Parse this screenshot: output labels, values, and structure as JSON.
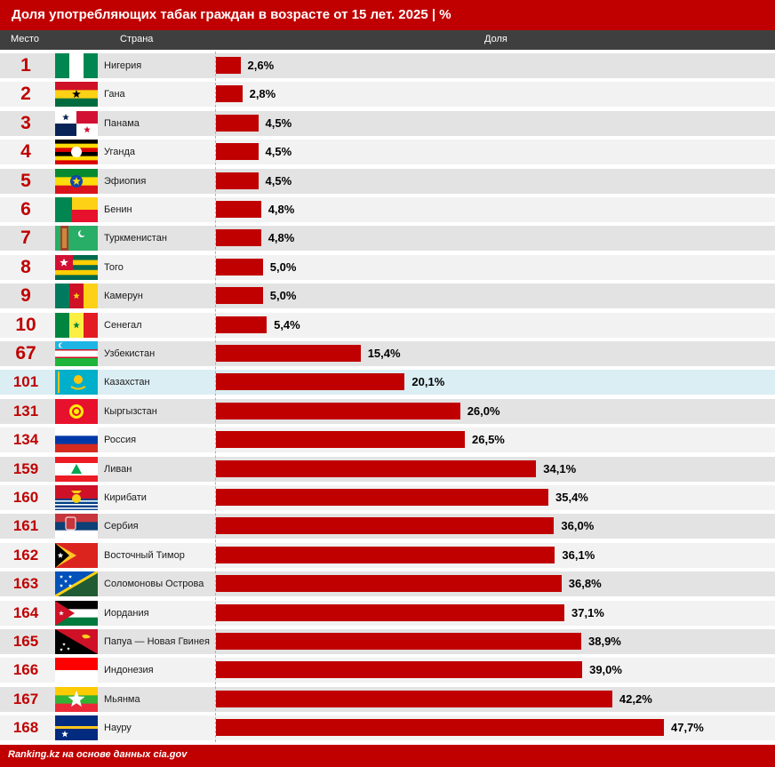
{
  "header": {
    "title": "Доля употребляющих табак граждан в возрасте от 15 лет. 2025 | %",
    "col_rank": "Место",
    "col_country": "Страна",
    "col_share": "Доля"
  },
  "footer": {
    "source": "Ranking.kz на основе данных cia.gov"
  },
  "colors": {
    "accent": "#c00000",
    "header_dark": "#3f3f3f",
    "highlight": "#dbeef4"
  },
  "chart_data": {
    "type": "bar",
    "orientation": "horizontal",
    "title": "Доля употребляющих табак граждан в возрасте от 15 лет. 2025 | %",
    "xlabel": "Доля",
    "unit": "%",
    "xlim": [
      0,
      47.7
    ],
    "categories": [
      "Нигерия",
      "Гана",
      "Панама",
      "Уганда",
      "Эфиопия",
      "Бенин",
      "Туркменистан",
      "Того",
      "Камерун",
      "Сенегал",
      "Узбекистан",
      "Казахстан",
      "Кыргызстан",
      "Россия",
      "Ливан",
      "Кирибати",
      "Сербия",
      "Восточный Тимор",
      "Соломоновы Острова",
      "Иордания",
      "Папуа — Новая Гвинея",
      "Индонезия",
      "Мьянма",
      "Науру"
    ],
    "ranks": [
      "1",
      "2",
      "3",
      "4",
      "5",
      "6",
      "7",
      "8",
      "9",
      "10",
      "67",
      "101",
      "131",
      "134",
      "159",
      "160",
      "161",
      "162",
      "163",
      "164",
      "165",
      "166",
      "167",
      "168"
    ],
    "values": [
      2.6,
      2.8,
      4.5,
      4.5,
      4.5,
      4.8,
      4.8,
      5.0,
      5.0,
      5.4,
      15.4,
      20.1,
      26.0,
      26.5,
      34.1,
      35.4,
      36.0,
      36.1,
      36.8,
      37.1,
      38.9,
      39.0,
      42.2,
      47.7
    ],
    "labels": [
      "2,6%",
      "2,8%",
      "4,5%",
      "4,5%",
      "4,5%",
      "4,8%",
      "4,8%",
      "5,0%",
      "5,0%",
      "5,4%",
      "15,4%",
      "20,1%",
      "26,0%",
      "26,5%",
      "34,1%",
      "35,4%",
      "36,0%",
      "36,1%",
      "36,8%",
      "37,1%",
      "38,9%",
      "39,0%",
      "42,2%",
      "47,7%"
    ],
    "flags": [
      "nigeria-flag-icon",
      "ghana-flag-icon",
      "panama-flag-icon",
      "uganda-flag-icon",
      "ethiopia-flag-icon",
      "benin-flag-icon",
      "turkmenistan-flag-icon",
      "togo-flag-icon",
      "cameroon-flag-icon",
      "senegal-flag-icon",
      "uzbekistan-flag-icon",
      "kazakhstan-flag-icon",
      "kyrgyzstan-flag-icon",
      "russia-flag-icon",
      "lebanon-flag-icon",
      "kiribati-flag-icon",
      "serbia-flag-icon",
      "east-timor-flag-icon",
      "solomon-islands-flag-icon",
      "jordan-flag-icon",
      "papua-new-guinea-flag-icon",
      "indonesia-flag-icon",
      "myanmar-flag-icon",
      "nauru-flag-icon"
    ],
    "highlighted": "Казахстан"
  }
}
